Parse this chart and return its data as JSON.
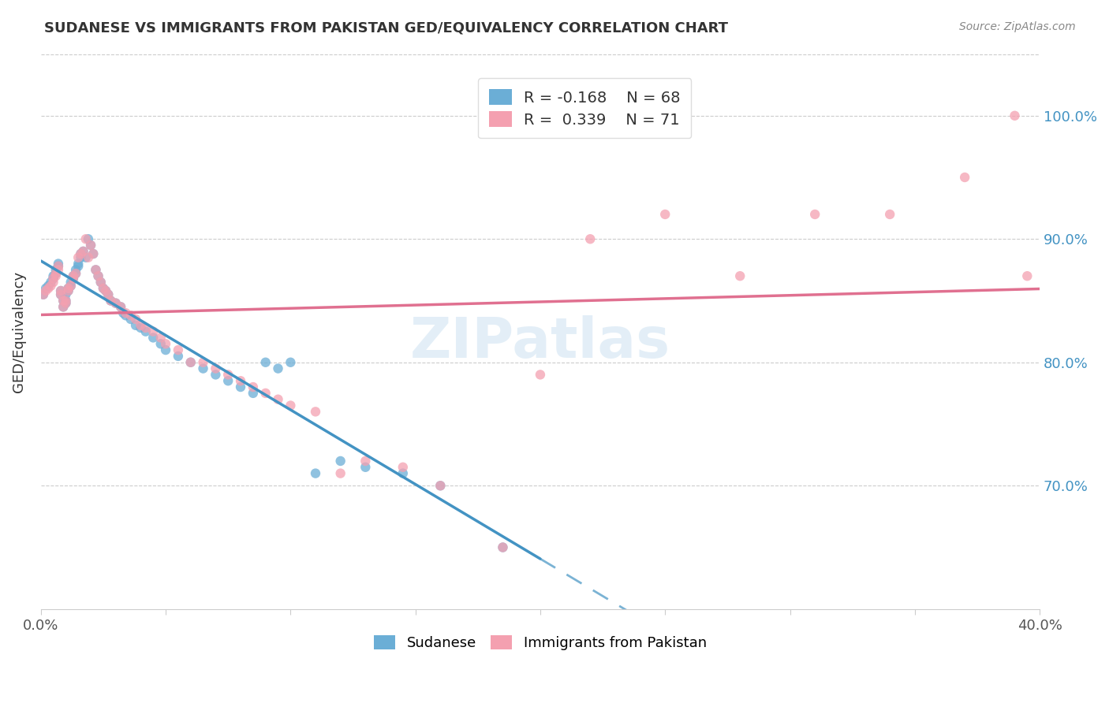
{
  "title": "SUDANESE VS IMMIGRANTS FROM PAKISTAN GED/EQUIVALENCY CORRELATION CHART",
  "source": "Source: ZipAtlas.com",
  "ylabel": "GED/Equivalency",
  "x_min": 0.0,
  "x_max": 0.4,
  "y_min": 0.6,
  "y_max": 1.05,
  "blue_color": "#6baed6",
  "pink_color": "#f4a0b0",
  "blue_line_color": "#4393c3",
  "pink_line_color": "#e07090",
  "legend_blue_R": "R = -0.168",
  "legend_blue_N": "N = 68",
  "legend_pink_R": "R =  0.339",
  "legend_pink_N": "N = 71",
  "watermark": "ZIPatlas",
  "blue_scatter_x": [
    0.001,
    0.002,
    0.003,
    0.004,
    0.005,
    0.005,
    0.006,
    0.006,
    0.007,
    0.007,
    0.008,
    0.008,
    0.009,
    0.009,
    0.01,
    0.01,
    0.01,
    0.011,
    0.011,
    0.012,
    0.012,
    0.013,
    0.013,
    0.014,
    0.014,
    0.015,
    0.015,
    0.016,
    0.016,
    0.017,
    0.018,
    0.019,
    0.02,
    0.021,
    0.022,
    0.023,
    0.024,
    0.025,
    0.026,
    0.027,
    0.028,
    0.03,
    0.032,
    0.033,
    0.034,
    0.036,
    0.038,
    0.04,
    0.042,
    0.045,
    0.048,
    0.05,
    0.055,
    0.06,
    0.065,
    0.07,
    0.075,
    0.08,
    0.085,
    0.09,
    0.095,
    0.1,
    0.11,
    0.12,
    0.13,
    0.145,
    0.16,
    0.185
  ],
  "blue_scatter_y": [
    0.855,
    0.86,
    0.862,
    0.865,
    0.868,
    0.87,
    0.872,
    0.875,
    0.878,
    0.88,
    0.855,
    0.858,
    0.85,
    0.845,
    0.848,
    0.85,
    0.855,
    0.858,
    0.86,
    0.862,
    0.865,
    0.868,
    0.87,
    0.872,
    0.875,
    0.878,
    0.88,
    0.885,
    0.888,
    0.89,
    0.885,
    0.9,
    0.895,
    0.888,
    0.875,
    0.87,
    0.865,
    0.86,
    0.858,
    0.855,
    0.85,
    0.848,
    0.845,
    0.84,
    0.838,
    0.835,
    0.83,
    0.828,
    0.825,
    0.82,
    0.815,
    0.81,
    0.805,
    0.8,
    0.795,
    0.79,
    0.785,
    0.78,
    0.775,
    0.8,
    0.795,
    0.8,
    0.71,
    0.72,
    0.715,
    0.71,
    0.7,
    0.65
  ],
  "pink_scatter_x": [
    0.001,
    0.002,
    0.003,
    0.004,
    0.005,
    0.005,
    0.006,
    0.006,
    0.007,
    0.007,
    0.008,
    0.008,
    0.009,
    0.009,
    0.01,
    0.01,
    0.011,
    0.011,
    0.012,
    0.013,
    0.013,
    0.014,
    0.015,
    0.016,
    0.017,
    0.018,
    0.019,
    0.02,
    0.021,
    0.022,
    0.023,
    0.024,
    0.025,
    0.026,
    0.027,
    0.028,
    0.03,
    0.032,
    0.034,
    0.036,
    0.038,
    0.04,
    0.042,
    0.045,
    0.048,
    0.05,
    0.055,
    0.06,
    0.065,
    0.07,
    0.075,
    0.08,
    0.085,
    0.09,
    0.095,
    0.1,
    0.11,
    0.12,
    0.13,
    0.145,
    0.16,
    0.185,
    0.2,
    0.22,
    0.25,
    0.28,
    0.31,
    0.34,
    0.37,
    0.39,
    0.395
  ],
  "pink_scatter_y": [
    0.855,
    0.858,
    0.86,
    0.862,
    0.865,
    0.868,
    0.87,
    0.872,
    0.875,
    0.878,
    0.855,
    0.858,
    0.85,
    0.845,
    0.848,
    0.85,
    0.858,
    0.86,
    0.862,
    0.868,
    0.87,
    0.872,
    0.885,
    0.888,
    0.89,
    0.9,
    0.885,
    0.895,
    0.888,
    0.875,
    0.87,
    0.865,
    0.86,
    0.858,
    0.855,
    0.85,
    0.848,
    0.845,
    0.84,
    0.838,
    0.835,
    0.83,
    0.828,
    0.825,
    0.82,
    0.815,
    0.81,
    0.8,
    0.8,
    0.795,
    0.79,
    0.785,
    0.78,
    0.775,
    0.77,
    0.765,
    0.76,
    0.71,
    0.72,
    0.715,
    0.7,
    0.65,
    0.79,
    0.9,
    0.92,
    0.87,
    0.92,
    0.92,
    0.95,
    1.0,
    0.87
  ]
}
